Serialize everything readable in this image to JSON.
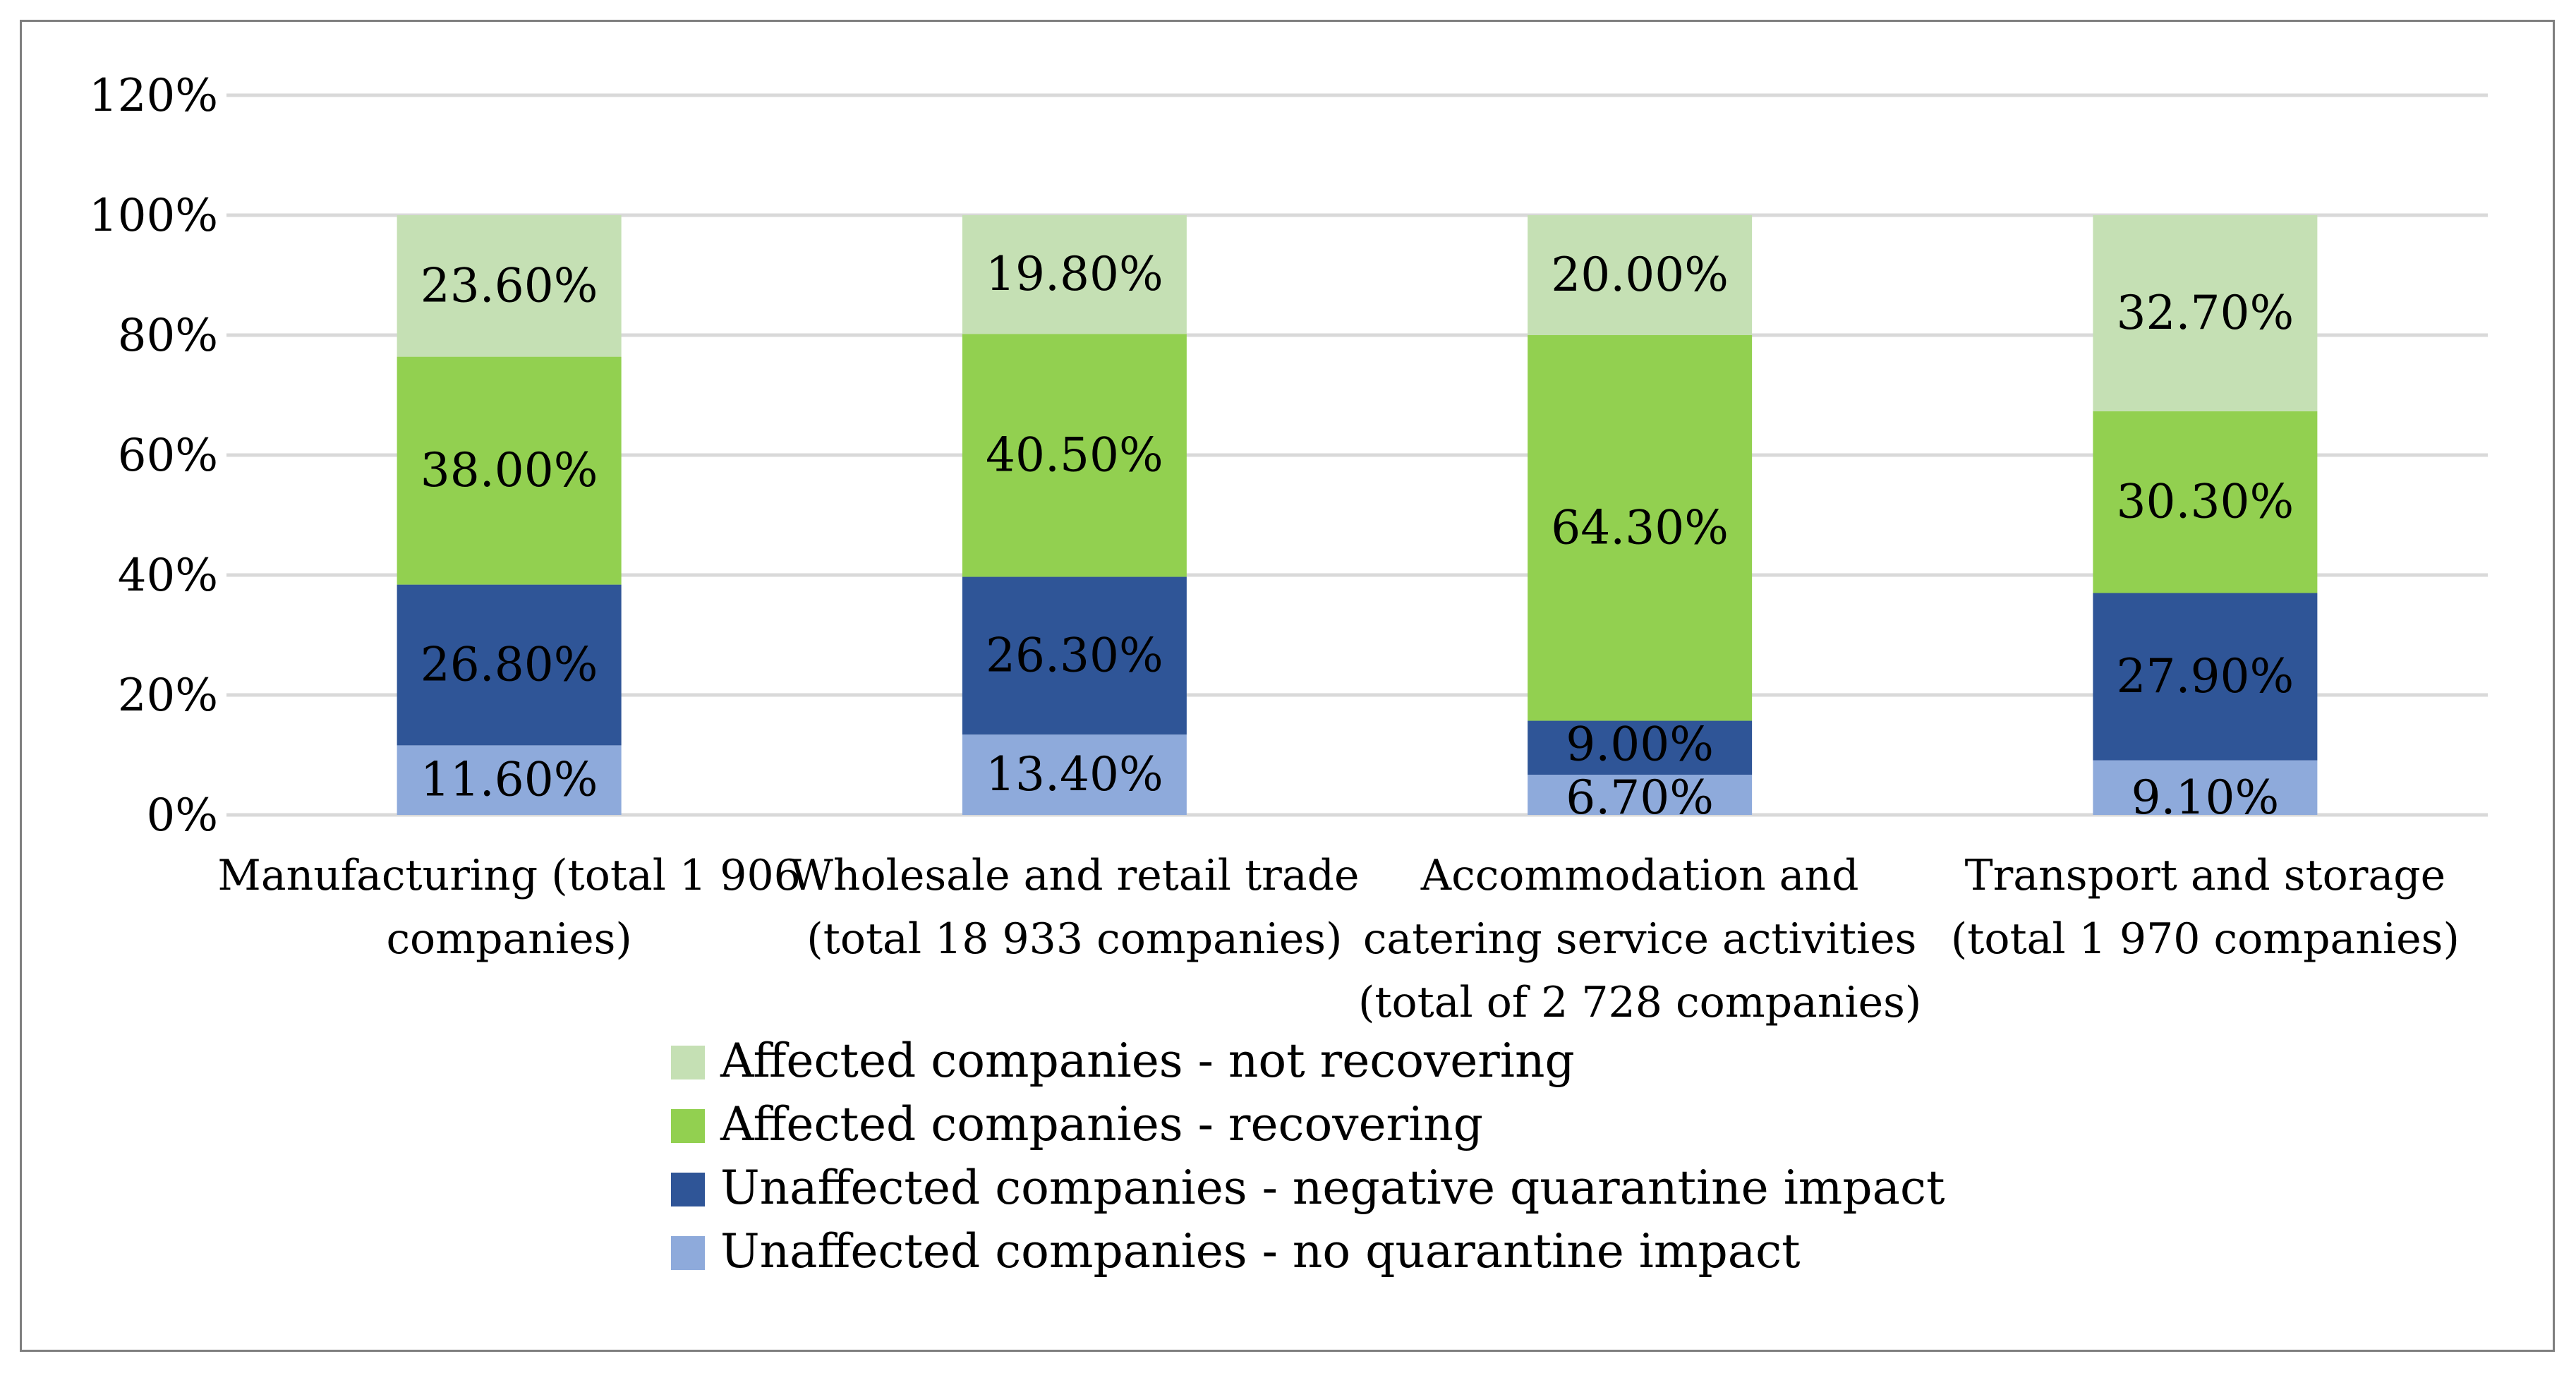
{
  "chart_data": {
    "type": "bar",
    "stacked": true,
    "title": "",
    "xlabel": "",
    "ylabel": "",
    "ylim": [
      0,
      120
    ],
    "yticks": [
      0,
      20,
      40,
      60,
      80,
      100,
      120
    ],
    "ytick_labels": [
      "0%",
      "20%",
      "40%",
      "60%",
      "80%",
      "100%",
      "120%"
    ],
    "grid": true,
    "legend_position": "bottom",
    "categories": [
      [
        "Manufacturing (total 1 906",
        "companies)"
      ],
      [
        "Wholesale and retail trade",
        "(total 18 933 companies)"
      ],
      [
        "Accommodation and",
        "catering service activities",
        "(total of 2 728 companies)"
      ],
      [
        "Transport and storage",
        "(total 1 970 companies)"
      ]
    ],
    "series": [
      {
        "name": "Unaffected companies - no quarantine impact",
        "color": "#8eaadb",
        "values": [
          11.6,
          13.4,
          6.7,
          9.1
        ],
        "labels": [
          "11.60%",
          "13.40%",
          "6.70%",
          "9.10%"
        ]
      },
      {
        "name": "Unaffected companies - negative quarantine impact",
        "color": "#2f5597",
        "values": [
          26.8,
          26.3,
          9.0,
          27.9
        ],
        "labels": [
          "26.80%",
          "26.30%",
          "9.00%",
          "27.90%"
        ]
      },
      {
        "name": "Affected companies - recovering",
        "color": "#92d050",
        "values": [
          38.0,
          40.5,
          64.3,
          30.3
        ],
        "labels": [
          "38.00%",
          "40.50%",
          "64.30%",
          "30.30%"
        ]
      },
      {
        "name": "Affected companies - not recovering",
        "color": "#c5e0b4",
        "values": [
          23.6,
          19.8,
          20.0,
          32.7
        ],
        "labels": [
          "23.60%",
          "19.80%",
          "20.00%",
          "32.70%"
        ]
      }
    ],
    "legend_order": [
      3,
      2,
      1,
      0
    ]
  }
}
